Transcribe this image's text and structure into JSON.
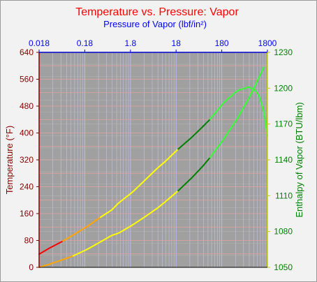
{
  "chart_data": {
    "type": "line",
    "title": "Temperature vs. Pressure: Vapor",
    "xlabel": "Pressure of Vapor (lbf/in²)",
    "ylabel_left": "Temperature (°F)",
    "ylabel_right": "Enthalpy of Vapor (BTU/lbm)",
    "x_scale": "log",
    "xlim": [
      0.018,
      1800
    ],
    "ylim_left": [
      0,
      640
    ],
    "ylim_right": [
      1050,
      1230
    ],
    "x_ticks": [
      0.018,
      0.18,
      1.8,
      18,
      180,
      1800
    ],
    "x_tick_labels": [
      "0.018",
      "0.18",
      "1.8",
      "18",
      "180",
      "1800"
    ],
    "y_left_ticks": [
      0,
      80,
      160,
      240,
      320,
      400,
      480,
      560,
      640
    ],
    "y_left_tick_labels": [
      "0",
      "80",
      "160",
      "240",
      "320",
      "400",
      "480",
      "560",
      "640"
    ],
    "y_right_ticks": [
      1050,
      1080,
      1110,
      1140,
      1170,
      1200,
      1230
    ],
    "y_right_tick_labels": [
      "1050",
      "1080",
      "1110",
      "1140",
      "1170",
      "1200",
      "1230"
    ],
    "grid": true,
    "series": [
      {
        "axis": "left",
        "x": [
          0.018,
          0.03,
          0.06,
          0.1,
          0.2,
          0.4,
          0.7,
          1,
          2,
          4,
          7,
          10,
          20,
          40,
          70,
          100,
          200,
          400,
          700,
          1000,
          1500
        ],
        "y": [
          0,
          9,
          23,
          34,
          53,
          76,
          95,
          102,
          126,
          153,
          176,
          193,
          228,
          267,
          302,
          327,
          382,
          444,
          502,
          545,
          596
        ],
        "segments": [
          {
            "x_from": 0.018,
            "x_to": 0.1,
            "color": "#ffa500"
          },
          {
            "x_from": 0.1,
            "x_to": 20,
            "color": "#ffff00"
          },
          {
            "x_from": 20,
            "x_to": 100,
            "color": "#008000"
          },
          {
            "x_from": 100,
            "x_to": 1500,
            "color": "#33ff33"
          }
        ]
      },
      {
        "axis": "right",
        "x": [
          0.018,
          0.03,
          0.06,
          0.1,
          0.2,
          0.4,
          0.7,
          1,
          2,
          4,
          7,
          10,
          20,
          40,
          70,
          100,
          200,
          400,
          700,
          1000,
          1200,
          1500,
          1800
        ],
        "y": [
          1061,
          1066,
          1072,
          1077,
          1084,
          1092,
          1098,
          1104,
          1113,
          1124,
          1133,
          1138,
          1149,
          1159,
          1168,
          1174,
          1188,
          1198,
          1201,
          1198,
          1193,
          1181,
          1160
        ],
        "segments": [
          {
            "x_from": 0.018,
            "x_to": 0.06,
            "color": "#ff0000"
          },
          {
            "x_from": 0.06,
            "x_to": 0.4,
            "color": "#ffa500"
          },
          {
            "x_from": 0.4,
            "x_to": 20,
            "color": "#ffff00"
          },
          {
            "x_from": 20,
            "x_to": 100,
            "color": "#008000"
          },
          {
            "x_from": 100,
            "x_to": 1800,
            "color": "#33ff33"
          }
        ]
      }
    ]
  }
}
